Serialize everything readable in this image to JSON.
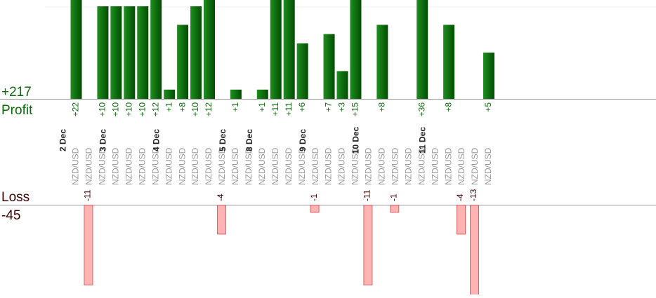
{
  "chart_data": {
    "type": "bar",
    "profit_label": "Profit",
    "profit_total": "+217",
    "loss_label": "Loss",
    "loss_total": "-45",
    "pair": "NZD/USD",
    "day_labels": [
      "2 Dec",
      "3 Dec",
      "4 Dec",
      "5 Dec",
      "8 Dec",
      "9 Dec",
      "10 Dec",
      "11 Dec"
    ],
    "trades": [
      {
        "day": "2 Dec",
        "profit": 22,
        "loss": null
      },
      {
        "day": "2 Dec",
        "profit": null,
        "loss": -11
      },
      {
        "day": "2 Dec",
        "profit": 10,
        "loss": null
      },
      {
        "day": "3 Dec",
        "profit": 10,
        "loss": null
      },
      {
        "day": "3 Dec",
        "profit": 10,
        "loss": null
      },
      {
        "day": "3 Dec",
        "profit": 10,
        "loss": null
      },
      {
        "day": "3 Dec",
        "profit": 12,
        "loss": null
      },
      {
        "day": "4 Dec",
        "profit": 1,
        "loss": null
      },
      {
        "day": "4 Dec",
        "profit": 8,
        "loss": null
      },
      {
        "day": "4 Dec",
        "profit": 10,
        "loss": null
      },
      {
        "day": "4 Dec",
        "profit": 12,
        "loss": null
      },
      {
        "day": "4 Dec",
        "profit": null,
        "loss": -4
      },
      {
        "day": "5 Dec",
        "profit": 1,
        "loss": null
      },
      {
        "day": "5 Dec",
        "profit": null,
        "loss": null
      },
      {
        "day": "8 Dec",
        "profit": 1,
        "loss": null
      },
      {
        "day": "8 Dec",
        "profit": 11,
        "loss": null
      },
      {
        "day": "8 Dec",
        "profit": 11,
        "loss": null
      },
      {
        "day": "8 Dec",
        "profit": 6,
        "loss": null
      },
      {
        "day": "9 Dec",
        "profit": null,
        "loss": -1
      },
      {
        "day": "9 Dec",
        "profit": 7,
        "loss": null
      },
      {
        "day": "9 Dec",
        "profit": 3,
        "loss": null
      },
      {
        "day": "9 Dec",
        "profit": 15,
        "loss": null
      },
      {
        "day": "10 Dec",
        "profit": null,
        "loss": -11
      },
      {
        "day": "10 Dec",
        "profit": 8,
        "loss": null
      },
      {
        "day": "10 Dec",
        "profit": null,
        "loss": -1
      },
      {
        "day": "10 Dec",
        "profit": null,
        "loss": null
      },
      {
        "day": "10 Dec",
        "profit": 36,
        "loss": null
      },
      {
        "day": "11 Dec",
        "profit": null,
        "loss": null
      },
      {
        "day": "11 Dec",
        "profit": 8,
        "loss": null
      },
      {
        "day": "11 Dec",
        "profit": null,
        "loss": -4
      },
      {
        "day": "11 Dec",
        "profit": null,
        "loss": -13
      },
      {
        "day": "11 Dec",
        "profit": 5,
        "loss": null
      }
    ],
    "colors": {
      "profit_bar": "#0e6b0e",
      "profit_text": "#0a6a0a",
      "loss_fill": "#ffb3b3",
      "loss_stroke": "#e06060",
      "loss_text": "#3a0000",
      "pair_text": "#999999",
      "day_text": "#222222"
    }
  }
}
